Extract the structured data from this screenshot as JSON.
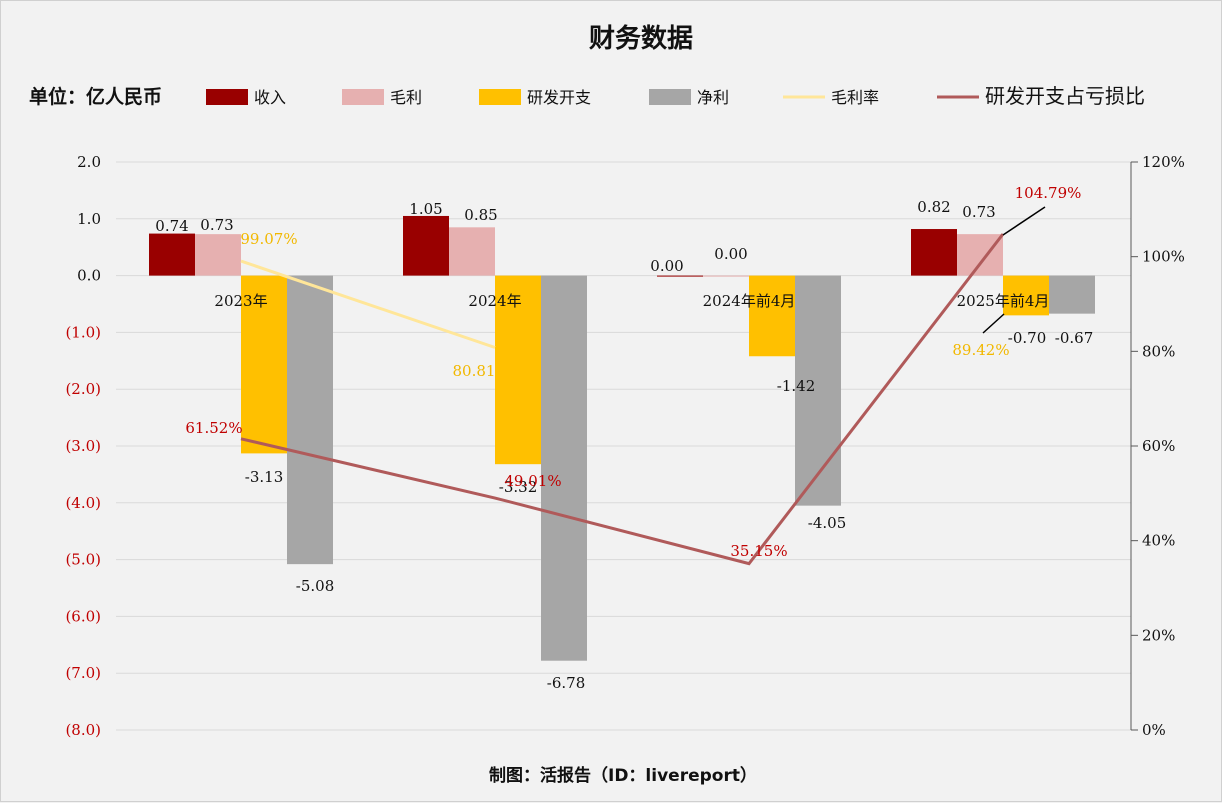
{
  "chart_data": {
    "type": "bar",
    "title": "财务数据",
    "unit_label": "单位：亿人民币",
    "footer": "制图：活报告（ID：livereport）",
    "categories": [
      "2023年",
      "2024年",
      "2024年前4月",
      "2025年前4月"
    ],
    "series": [
      {
        "name": "收入",
        "type": "bar",
        "color": "#990000",
        "values": [
          0.74,
          1.05,
          0.0,
          0.82
        ],
        "labels": [
          "0.74",
          "1.05",
          "0.00",
          "0.82"
        ]
      },
      {
        "name": "毛利",
        "type": "bar",
        "color": "#e6b0b0",
        "values": [
          0.73,
          0.85,
          0.0,
          0.73
        ],
        "labels": [
          "0.73",
          "0.85",
          "0.00",
          "0.73"
        ]
      },
      {
        "name": "研发开支",
        "type": "bar",
        "color": "#ffc000",
        "values": [
          -3.13,
          -3.32,
          -1.42,
          -0.7
        ],
        "labels": [
          "-3.13",
          "-3.32",
          "-1.42",
          "-0.70"
        ]
      },
      {
        "name": "净利",
        "type": "bar",
        "color": "#a6a6a6",
        "values": [
          -5.08,
          -6.78,
          -4.05,
          -0.67
        ],
        "labels": [
          "-5.08",
          "-6.78",
          "-4.05",
          "-0.67"
        ]
      },
      {
        "name": "毛利率",
        "type": "line",
        "axis": "right",
        "color": "#ffe699",
        "values": [
          99.07,
          80.81,
          null,
          89.42
        ],
        "labels": [
          "99.07%",
          "80.81",
          "",
          "89.42%"
        ]
      },
      {
        "name": "研发开支占亏损比",
        "type": "line",
        "axis": "right",
        "color": "#b05a5a",
        "values": [
          61.52,
          49.01,
          35.15,
          104.79
        ],
        "labels": [
          "61.52%",
          "49.01%",
          "35.15%",
          "104.79%"
        ]
      }
    ],
    "left_axis": {
      "min": -8,
      "max": 2,
      "step": 1,
      "ticks": [
        "2.0",
        "1.0",
        "0.0",
        "(1.0)",
        "(2.0)",
        "(3.0)",
        "(4.0)",
        "(5.0)",
        "(6.0)",
        "(7.0)",
        "(8.0)"
      ],
      "negative_color": "#c00000"
    },
    "right_axis": {
      "min": 0,
      "max": 120,
      "step": 20,
      "ticks": [
        "120%",
        "100%",
        "80%",
        "60%",
        "40%",
        "20%",
        "0%"
      ]
    },
    "grid": true,
    "legend_position": "top"
  }
}
